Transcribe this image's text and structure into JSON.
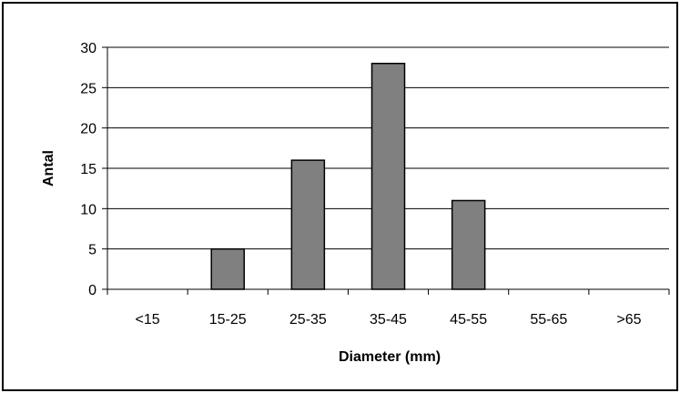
{
  "chart_data": {
    "type": "bar",
    "categories": [
      "<15",
      "15-25",
      "25-35",
      "35-45",
      "45-55",
      "55-65",
      ">65"
    ],
    "values": [
      0,
      5,
      16,
      28,
      11,
      0,
      0
    ],
    "title": "",
    "xlabel": "Diameter (mm)",
    "ylabel": "Antal",
    "ylim": [
      0,
      30
    ],
    "yticks": [
      "0",
      "5",
      "10",
      "15",
      "20",
      "25",
      "30"
    ],
    "grid": true,
    "legend": "none",
    "bar_color": "#808080",
    "bar_edge_color": "#000000"
  }
}
